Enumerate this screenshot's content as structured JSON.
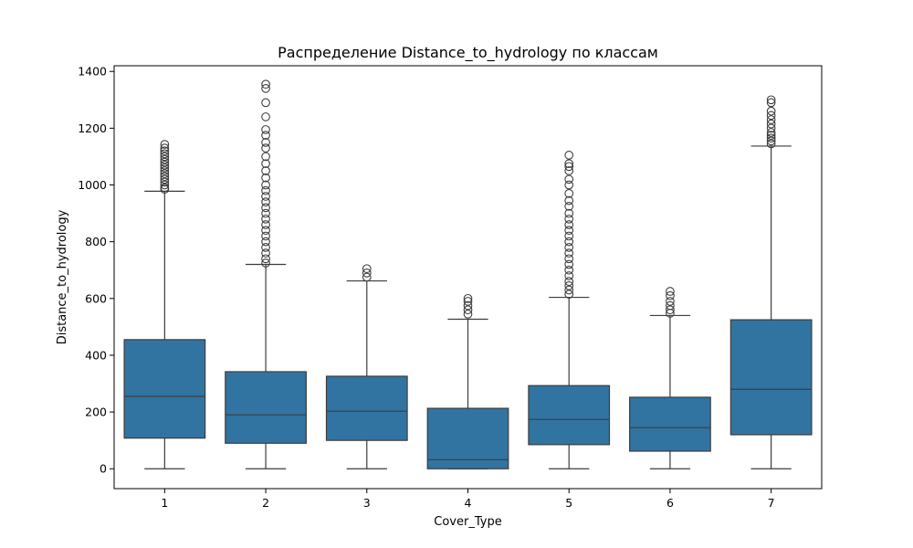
{
  "chart_data": {
    "type": "box",
    "title": "Распределение Distance_to_hydrology по классам",
    "xlabel": "Cover_Type",
    "ylabel": "Distance_to_hydrology",
    "categories": [
      "1",
      "2",
      "3",
      "4",
      "5",
      "6",
      "7"
    ],
    "ylim": [
      -70,
      1420
    ],
    "yticks": [
      0,
      200,
      400,
      600,
      800,
      1000,
      1200,
      1400
    ],
    "grid": false,
    "box_color": "#3274a1",
    "line_color": "#3c3c3c",
    "boxes": [
      {
        "category": "1",
        "whisker_low": 0,
        "q1": 108,
        "median": 255,
        "q3": 455,
        "whisker_high": 978,
        "outliers": [
          985,
          990,
          1000,
          1010,
          1020,
          1030,
          1040,
          1050,
          1060,
          1070,
          1080,
          1090,
          1100,
          1110,
          1120,
          1130,
          1143
        ]
      },
      {
        "category": "2",
        "whisker_low": 0,
        "q1": 90,
        "median": 190,
        "q3": 342,
        "whisker_high": 720,
        "outliers": [
          725,
          740,
          760,
          780,
          800,
          820,
          840,
          860,
          880,
          900,
          920,
          940,
          960,
          980,
          1000,
          1025,
          1050,
          1075,
          1100,
          1130,
          1150,
          1175,
          1195,
          1240,
          1290,
          1340,
          1355
        ]
      },
      {
        "category": "3",
        "whisker_low": 0,
        "q1": 100,
        "median": 203,
        "q3": 326,
        "whisker_high": 662,
        "outliers": [
          675,
          690,
          705
        ]
      },
      {
        "category": "4",
        "whisker_low": 0,
        "q1": 0,
        "median": 32,
        "q3": 213,
        "whisker_high": 527,
        "outliers": [
          545,
          560,
          575,
          590,
          600
        ]
      },
      {
        "category": "5",
        "whisker_low": 0,
        "q1": 85,
        "median": 174,
        "q3": 293,
        "whisker_high": 604,
        "outliers": [
          615,
          630,
          645,
          660,
          680,
          700,
          720,
          740,
          760,
          780,
          800,
          820,
          840,
          860,
          880,
          900,
          925,
          945,
          970,
          1000,
          1020,
          1050,
          1065,
          1075,
          1105
        ]
      },
      {
        "category": "6",
        "whisker_low": 0,
        "q1": 62,
        "median": 145,
        "q3": 252,
        "whisker_high": 540,
        "outliers": [
          548,
          560,
          575,
          590,
          610,
          625
        ]
      },
      {
        "category": "7",
        "whisker_low": 0,
        "q1": 120,
        "median": 280,
        "q3": 525,
        "whisker_high": 1137,
        "outliers": [
          1145,
          1155,
          1165,
          1175,
          1185,
          1200,
          1215,
          1230,
          1245,
          1260,
          1290,
          1300
        ]
      }
    ]
  }
}
